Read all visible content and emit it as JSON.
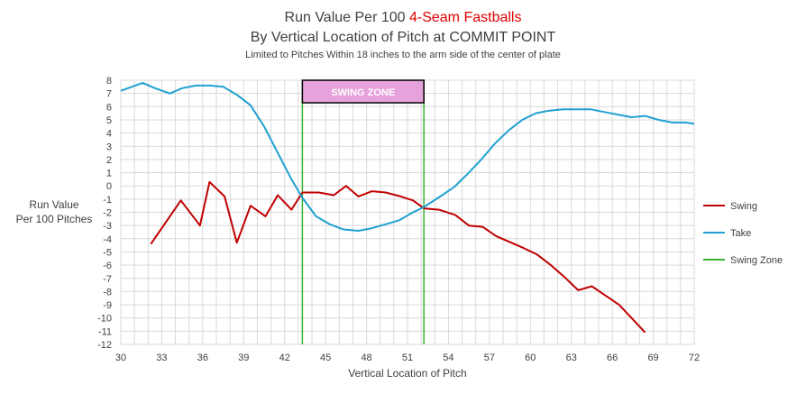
{
  "title": {
    "line1_prefix": "Run Value Per 100",
    "line1_highlight": "4-Seam Fastballs",
    "line2": "By Vertical Location of Pitch at COMMIT POINT",
    "subtitle": "Limited to Pitches Within 18 inches to the arm side of the center of plate"
  },
  "chart_data": {
    "type": "line",
    "xlabel": "Vertical Location of Pitch",
    "ylabel_lines": [
      "Run Value",
      "Per 100 Pitches"
    ],
    "xlim": [
      30,
      72
    ],
    "ylim": [
      -12,
      8
    ],
    "x_ticks": [
      30,
      33,
      36,
      39,
      42,
      45,
      48,
      51,
      54,
      57,
      60,
      63,
      66,
      69,
      72
    ],
    "y_ticks": [
      8,
      7,
      6,
      5,
      4,
      3,
      2,
      1,
      0,
      -1,
      -2,
      -3,
      -4,
      -5,
      -6,
      -7,
      -8,
      -9,
      -10,
      -11,
      -12
    ],
    "grid": true,
    "legend_position": "right",
    "zone_label": "SWING ZONE",
    "zone": [
      43.3,
      52.2
    ],
    "series": [
      {
        "name": "Swing",
        "color": "#c00000",
        "x": [
          32.2,
          34.4,
          35.8,
          36.5,
          37.6,
          38.5,
          39.5,
          40.6,
          41.5,
          42.5,
          43.3,
          44.5,
          45.6,
          46.5,
          47.4,
          48.4,
          49.4,
          50.5,
          51.4,
          52.2,
          53.3,
          54.5,
          55.5,
          56.5,
          57.5,
          58.6,
          59.5,
          60.5,
          61.5,
          62.5,
          63.5,
          64.5,
          65.5,
          66.5,
          67.5,
          68.4
        ],
        "y": [
          -4.4,
          -1.1,
          -3.0,
          0.3,
          -0.8,
          -4.3,
          -1.5,
          -2.3,
          -0.7,
          -1.8,
          -0.5,
          -0.5,
          -0.7,
          0.0,
          -0.8,
          -0.4,
          -0.5,
          -0.8,
          -1.1,
          -1.7,
          -1.8,
          -2.2,
          -3.0,
          -3.1,
          -3.8,
          -4.3,
          -4.7,
          -5.2,
          -6.0,
          -6.9,
          -7.9,
          -7.6,
          -8.3,
          -9.0,
          -10.1,
          -11.1
        ]
      },
      {
        "name": "Take",
        "color": "#20a0d0",
        "x": [
          30.0,
          31.6,
          32.5,
          33.6,
          34.5,
          35.5,
          36.5,
          37.5,
          38.5,
          39.5,
          40.5,
          41.5,
          42.5,
          43.3,
          44.3,
          45.3,
          46.3,
          47.4,
          48.4,
          49.4,
          50.4,
          51.4,
          52.2,
          53.4,
          54.4,
          55.4,
          56.4,
          57.4,
          58.4,
          59.4,
          60.4,
          61.4,
          62.4,
          63.4,
          64.4,
          65.4,
          66.4,
          67.4,
          68.4,
          69.4,
          70.4,
          71.4,
          72.0
        ],
        "y": [
          7.2,
          7.8,
          7.4,
          7.0,
          7.4,
          7.6,
          7.6,
          7.5,
          6.9,
          6.1,
          4.5,
          2.5,
          0.5,
          -0.9,
          -2.3,
          -2.9,
          -3.3,
          -3.4,
          -3.2,
          -2.9,
          -2.6,
          -2.0,
          -1.6,
          -0.8,
          -0.1,
          0.9,
          2.0,
          3.2,
          4.2,
          5.0,
          5.5,
          5.7,
          5.8,
          5.8,
          5.8,
          5.6,
          5.4,
          5.2,
          5.3,
          5.0,
          4.8,
          4.8,
          4.7
        ]
      },
      {
        "name": "Swing Zone",
        "color": "#3cb030"
      }
    ]
  }
}
